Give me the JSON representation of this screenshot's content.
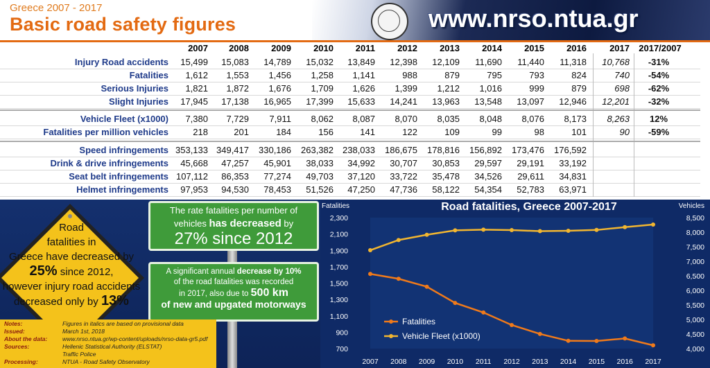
{
  "header": {
    "subtitle": "Greece 2007 - 2017",
    "title": "Basic road safety figures",
    "url": "www.nrso.ntua.gr",
    "accent": "#e36a12"
  },
  "table": {
    "columns": [
      "2007",
      "2008",
      "2009",
      "2010",
      "2011",
      "2012",
      "2013",
      "2014",
      "2015",
      "2016",
      "2017",
      "2017/2007"
    ],
    "rows": [
      {
        "label": "Injury Road accidents",
        "values": [
          "15,499",
          "15,083",
          "14,789",
          "15,032",
          "13,849",
          "12,398",
          "12,109",
          "11,690",
          "11,440",
          "11,318",
          "10,768"
        ],
        "change": "-31%"
      },
      {
        "label": "Fatalities",
        "values": [
          "1,612",
          "1,553",
          "1,456",
          "1,258",
          "1,141",
          "988",
          "879",
          "795",
          "793",
          "824",
          "740"
        ],
        "change": "-54%"
      },
      {
        "label": "Serious Injuries",
        "values": [
          "1,821",
          "1,872",
          "1,676",
          "1,709",
          "1,626",
          "1,399",
          "1,212",
          "1,016",
          "999",
          "879",
          "698"
        ],
        "change": "-62%"
      },
      {
        "label": "Slight Injuries",
        "values": [
          "17,945",
          "17,138",
          "16,965",
          "17,399",
          "15,633",
          "14,241",
          "13,963",
          "13,548",
          "13,097",
          "12,946",
          "12,201"
        ],
        "change": "-32%"
      },
      {
        "label": "Vehicle Fleet (x1000)",
        "values": [
          "7,380",
          "7,729",
          "7,911",
          "8,062",
          "8,087",
          "8,070",
          "8,035",
          "8,048",
          "8,076",
          "8,173",
          "8,263"
        ],
        "change": "12%"
      },
      {
        "label": "Fatalities per million vehicles",
        "values": [
          "218",
          "201",
          "184",
          "156",
          "141",
          "122",
          "109",
          "99",
          "98",
          "101",
          "90"
        ],
        "change": "-59%"
      },
      {
        "label": "Speed infringements",
        "values": [
          "353,133",
          "349,417",
          "330,186",
          "263,382",
          "238,033",
          "186,675",
          "178,816",
          "156,892",
          "173,476",
          "176,592",
          ""
        ],
        "change": ""
      },
      {
        "label": "Drink & drive infringements",
        "values": [
          "45,668",
          "47,257",
          "45,901",
          "38,033",
          "34,992",
          "30,707",
          "30,853",
          "29,597",
          "29,191",
          "33,192",
          ""
        ],
        "change": ""
      },
      {
        "label": "Seat belt infringements",
        "values": [
          "107,112",
          "86,353",
          "77,274",
          "49,703",
          "37,120",
          "33,722",
          "35,478",
          "34,526",
          "29,611",
          "34,831",
          ""
        ],
        "change": ""
      },
      {
        "label": "Helmet infringements",
        "values": [
          "97,953",
          "94,530",
          "78,453",
          "51,526",
          "47,250",
          "47,736",
          "58,122",
          "54,354",
          "52,783",
          "63,971",
          ""
        ],
        "change": ""
      }
    ]
  },
  "sign": {
    "line1": "Road",
    "line2": "fatalities in",
    "line3": "Greece have decreased by",
    "pct1": "25%",
    "line4": " since 2012,",
    "line5": "however injury road accidents",
    "line6": "decreased only by ",
    "pct2": "13%"
  },
  "green1": {
    "line1a": "The rate fatalities per number of",
    "line1b": "vehicles ",
    "line1c": "has decreased",
    "line1d": " by",
    "line2": "27%  since 2012"
  },
  "green2": {
    "a": "A significant annual ",
    "b": "decrease by 10%",
    "c": "of the road fatalities was recorded",
    "d": "in 2017, also due to ",
    "e": "500 km",
    "f": "of new and upgated motorways"
  },
  "notes": [
    {
      "label": "Notes:",
      "value": "Figures in italics are based on provisional data"
    },
    {
      "label": "Issued:",
      "value": "March 1st, 2018"
    },
    {
      "label": "About the data:",
      "value": "www.nrso.ntua.gr/wp-content/uploads/nrso-data-gr5.pdf"
    },
    {
      "label": "Sources:",
      "value": "Hellenic Statistical Authority (ELSTAT)"
    },
    {
      "label": "",
      "value": "Traffic Police"
    },
    {
      "label": "Processing:",
      "value": "NTUA - Road Safety Observatory"
    }
  ],
  "chart_data": {
    "type": "line",
    "title": "Road fatalities, Greece 2007-2017",
    "x": [
      2007,
      2008,
      2009,
      2010,
      2011,
      2012,
      2013,
      2014,
      2015,
      2016,
      2017
    ],
    "ylabel_left": "Fatalities",
    "ylabel_right": "Vehicles",
    "ylim_left": [
      700,
      2300
    ],
    "ylim_right": [
      4000,
      8500
    ],
    "yticks_left": [
      700,
      900,
      1100,
      1300,
      1500,
      1700,
      1900,
      2100,
      2300
    ],
    "yticks_right": [
      4000,
      4500,
      5000,
      5500,
      6000,
      6500,
      7000,
      7500,
      8000,
      8500
    ],
    "series": [
      {
        "name": "Fatalities",
        "axis": "left",
        "color": "#f07a1a",
        "values": [
          1612,
          1553,
          1456,
          1258,
          1141,
          988,
          879,
          795,
          793,
          824,
          740
        ]
      },
      {
        "name": "Vehicle Fleet (x1000)",
        "axis": "right",
        "color": "#f2b630",
        "values": [
          7380,
          7729,
          7911,
          8062,
          8087,
          8070,
          8035,
          8048,
          8076,
          8173,
          8263
        ]
      }
    ],
    "legend_position": "bottom-left",
    "grid": false
  }
}
